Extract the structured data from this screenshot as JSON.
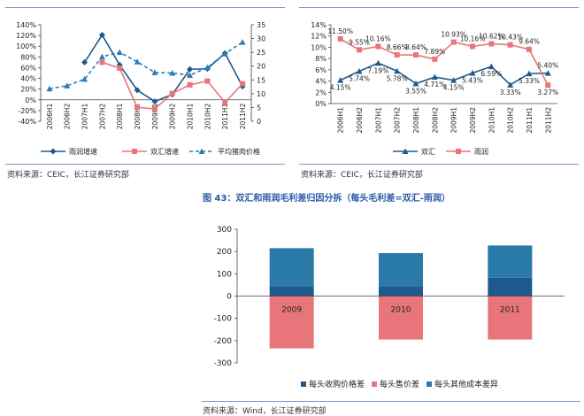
{
  "sources": {
    "top_left": "资料来源：CEIC，长江证券研究部",
    "top_right": "资料来源：CEIC，长江证券研究部",
    "bottom": "资料来源：Wind，长江证券研究部"
  },
  "figure_title": "图 43：双汇和雨润毛利差归因分拆（每头毛利差=双汇-雨润）",
  "chart_data": [
    {
      "type": "line",
      "title": "",
      "categories": [
        "2006H1",
        "2006H2",
        "2007H1",
        "2007H2",
        "2008H1",
        "2008H2",
        "2009H1",
        "2009H2",
        "2010H1",
        "2010H2",
        "2011H1",
        "2011H2"
      ],
      "ylim_left": [
        -40,
        140
      ],
      "ylim_right": [
        0,
        35
      ],
      "left_ticks": [
        "140%",
        "120%",
        "100%",
        "80%",
        "60%",
        "40%",
        "20%",
        "0%",
        "-20%",
        "-40%"
      ],
      "right_ticks": [
        "35",
        "30",
        "25",
        "20",
        "15",
        "10",
        "5",
        "0"
      ],
      "legend_position": "bottom",
      "series": [
        {
          "name": "雨润增速",
          "axis": "left",
          "color": "#1f5a8e",
          "marker": "diamond",
          "dash": "solid",
          "values": [
            null,
            null,
            70,
            121,
            65,
            18,
            -3,
            10,
            57,
            58,
            87,
            25
          ]
        },
        {
          "name": "双汇增速",
          "axis": "left",
          "color": "#e8757a",
          "marker": "square",
          "dash": "solid",
          "values": [
            null,
            null,
            null,
            70,
            59,
            -14,
            -17,
            12,
            28,
            35,
            -5,
            30
          ]
        },
        {
          "name": "平均猪肉价格",
          "axis": "right",
          "color": "#2a7db5",
          "marker": "triangle",
          "dash": "dashed",
          "values": [
            11.8,
            12.9,
            15.3,
            23.4,
            25,
            21.6,
            17.7,
            17.5,
            16.7,
            19.5,
            24.5,
            28.7
          ]
        }
      ]
    },
    {
      "type": "line",
      "title": "",
      "categories": [
        "2006H1",
        "2006H2",
        "2007H1",
        "2007H2",
        "2008H1",
        "2008H2",
        "2009H1",
        "2009H2",
        "2010H1",
        "2010H2",
        "2011H1",
        "2011H2"
      ],
      "ylim": [
        0,
        14
      ],
      "ticks": [
        "14%",
        "12%",
        "10%",
        "8%",
        "6%",
        "4%",
        "2%",
        "0%"
      ],
      "legend_position": "bottom",
      "series": [
        {
          "name": "双汇",
          "color": "#1f5a8e",
          "marker": "triangle",
          "values": [
            4.15,
            5.74,
            7.19,
            5.78,
            3.55,
            4.71,
            4.15,
            5.43,
            6.59,
            3.33,
            5.33,
            5.4
          ],
          "labels": [
            "4.15%",
            "5.74%",
            "7.19%",
            "5.78%",
            "3.55%",
            "4.71%",
            "4.15%",
            "5.43%",
            "6.59%",
            "3.33%",
            "5.33%",
            "5.40%"
          ]
        },
        {
          "name": "雨润",
          "color": "#e8757a",
          "marker": "square",
          "values": [
            11.5,
            9.55,
            10.16,
            8.66,
            8.64,
            7.89,
            10.93,
            10.16,
            10.62,
            10.43,
            9.64,
            3.27
          ],
          "labels": [
            "11.50%",
            "9.55%",
            "10.16%",
            "8.66%",
            "8.64%",
            "7.89%",
            "10.93%",
            "10.16%",
            "10.62%",
            "10.43%",
            "9.64%",
            "3.27%"
          ]
        }
      ]
    },
    {
      "type": "bar",
      "stacked": true,
      "title": "",
      "categories": [
        "2009",
        "2010",
        "2011"
      ],
      "ylim": [
        -300,
        300
      ],
      "ticks": [
        "300",
        "200",
        "100",
        "0",
        "-100",
        "-200",
        "-300"
      ],
      "legend_position": "bottom",
      "series": [
        {
          "name": "每头收购价格差",
          "color": "#1f5a8e",
          "values": [
            45,
            45,
            82
          ]
        },
        {
          "name": "每头售价差",
          "color": "#e8757a",
          "values": [
            -235,
            -195,
            -195
          ]
        },
        {
          "name": "每头其他成本差异",
          "color": "#2a7aa8",
          "values": [
            170,
            148,
            145
          ]
        }
      ]
    }
  ]
}
